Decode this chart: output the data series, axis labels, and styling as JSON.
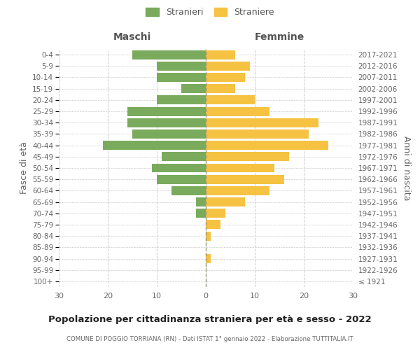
{
  "age_groups": [
    "100+",
    "95-99",
    "90-94",
    "85-89",
    "80-84",
    "75-79",
    "70-74",
    "65-69",
    "60-64",
    "55-59",
    "50-54",
    "45-49",
    "40-44",
    "35-39",
    "30-34",
    "25-29",
    "20-24",
    "15-19",
    "10-14",
    "5-9",
    "0-4"
  ],
  "birth_years": [
    "≤ 1921",
    "1922-1926",
    "1927-1931",
    "1932-1936",
    "1937-1941",
    "1942-1946",
    "1947-1951",
    "1952-1956",
    "1957-1961",
    "1962-1966",
    "1967-1971",
    "1972-1976",
    "1977-1981",
    "1982-1986",
    "1987-1991",
    "1992-1996",
    "1997-2001",
    "2002-2006",
    "2007-2011",
    "2012-2016",
    "2017-2021"
  ],
  "maschi": [
    0,
    0,
    0,
    0,
    0,
    0,
    2,
    2,
    7,
    10,
    11,
    9,
    21,
    15,
    16,
    16,
    10,
    5,
    10,
    10,
    15
  ],
  "femmine": [
    0,
    0,
    1,
    0,
    1,
    3,
    4,
    8,
    13,
    16,
    14,
    17,
    25,
    21,
    23,
    13,
    10,
    6,
    8,
    9,
    6
  ],
  "maschi_color": "#7aaa5c",
  "femmine_color": "#f5c242",
  "background_color": "#ffffff",
  "grid_color": "#cccccc",
  "title": "Popolazione per cittadinanza straniera per età e sesso - 2022",
  "subtitle": "COMUNE DI POGGIO TORRIANA (RN) - Dati ISTAT 1° gennaio 2022 - Elaborazione TUTTITALIA.IT",
  "ylabel_left": "Fasce di età",
  "ylabel_right": "Anni di nascita",
  "xlabel_left": "Maschi",
  "xlabel_right": "Femmine",
  "legend_maschi": "Stranieri",
  "legend_femmine": "Straniere",
  "xlim": 30,
  "bar_height": 0.8
}
